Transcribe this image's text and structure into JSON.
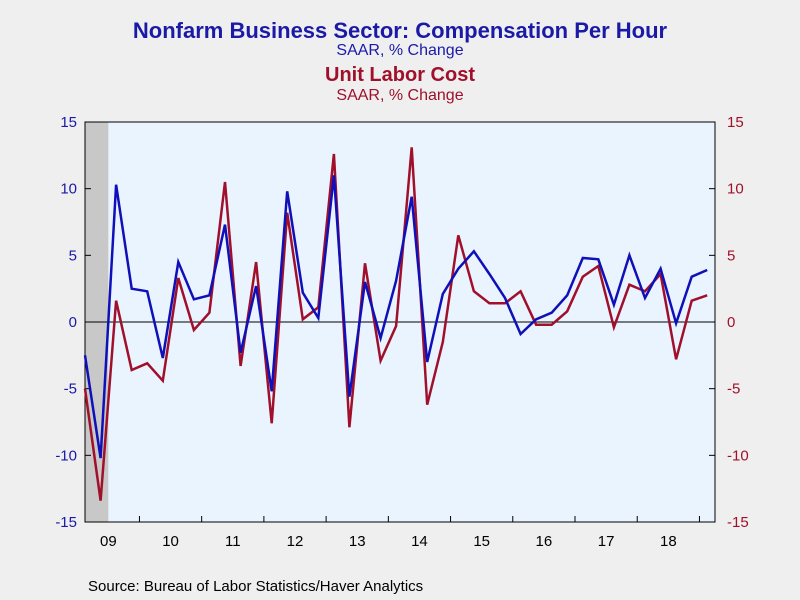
{
  "titles": {
    "title1": "Nonfarm Business Sector: Compensation Per Hour",
    "subtitle1": "SAAR, % Change",
    "title2": "Unit Labor Cost",
    "subtitle2": "SAAR, % Change"
  },
  "source": "Source:  Bureau of Labor Statistics/Haver Analytics",
  "colors": {
    "compensation": "#1010b8",
    "unit_labor_cost": "#a0102b",
    "plot_bg": "#eaf4ff",
    "recession": "#c8c8c8"
  },
  "chart_data": {
    "type": "line",
    "x_start": "2009-Q1",
    "x_tick_labels": [
      "09",
      "10",
      "11",
      "12",
      "13",
      "14",
      "15",
      "16",
      "17",
      "18"
    ],
    "y_left": {
      "ylim": [
        -15,
        15
      ],
      "ticks": [
        15,
        10,
        5,
        0,
        -5,
        -10,
        -15
      ]
    },
    "y_right": {
      "ylim": [
        -15,
        15
      ],
      "ticks": [
        15,
        10,
        5,
        0,
        -5,
        -10,
        -15
      ]
    },
    "recession_shading": {
      "from": "2009-Q1",
      "to": "2009-Q2"
    },
    "zero_line": true,
    "grid": false,
    "series": [
      {
        "name": "Nonfarm Business Sector: Compensation Per Hour",
        "axis": "left",
        "values": [
          -2.5,
          -10.2,
          10.3,
          2.5,
          2.3,
          -2.7,
          4.5,
          1.7,
          2.0,
          7.3,
          -2.3,
          2.7,
          -5.2,
          9.8,
          2.2,
          0.3,
          11.0,
          -5.6,
          3.0,
          -1.2,
          3.1,
          9.4,
          -3.0,
          2.1,
          4.0,
          5.3,
          3.6,
          1.8,
          -0.9,
          0.2,
          0.7,
          2.0,
          4.8,
          4.7,
          1.3,
          5.0,
          1.8,
          4.0,
          -0.1,
          3.4,
          3.9
        ]
      },
      {
        "name": "Unit Labor Cost",
        "axis": "right",
        "values": [
          -5.0,
          -13.4,
          1.6,
          -3.6,
          -3.1,
          -4.4,
          3.3,
          -0.6,
          0.7,
          10.5,
          -3.3,
          4.5,
          -7.6,
          8.2,
          0.2,
          1.1,
          12.6,
          -7.9,
          4.4,
          -2.9,
          -0.3,
          13.1,
          -6.2,
          -1.5,
          6.5,
          2.3,
          1.4,
          1.4,
          2.3,
          -0.2,
          -0.2,
          0.8,
          3.4,
          4.2,
          -0.4,
          2.8,
          2.3,
          3.6,
          -2.8,
          1.6,
          2.0
        ]
      }
    ]
  }
}
